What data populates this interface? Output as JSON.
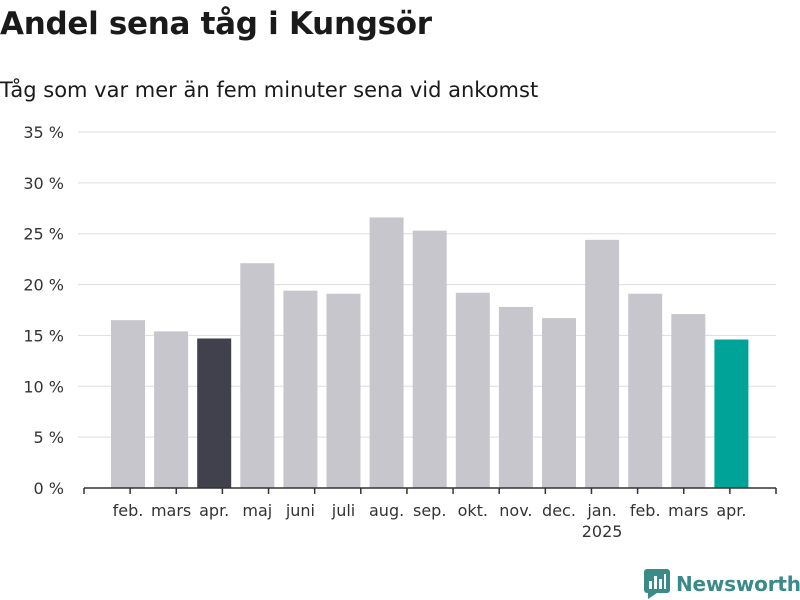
{
  "title": "Andel sena tåg i Kungsör",
  "subtitle": "Tåg som var mer än fem minuter sena vid ankomst",
  "brand": "Newsworthy",
  "colors": {
    "bar_default": "#c7c6cc",
    "bar_highlight_prev": "#41404d",
    "bar_highlight_current": "#00a398",
    "grid": "#dddddd",
    "axis": "#333333",
    "brand": "#3a8a87"
  },
  "chart_data": {
    "type": "bar",
    "categories": [
      "feb.",
      "mars",
      "apr.",
      "maj",
      "juni",
      "juli",
      "aug.",
      "sep.",
      "okt.",
      "nov.",
      "dec.",
      "jan.",
      "feb.",
      "mars",
      "apr."
    ],
    "year_labels": {
      "jan.": "2025"
    },
    "values": [
      16.5,
      15.4,
      14.7,
      22.1,
      19.4,
      19.1,
      26.6,
      25.3,
      19.2,
      17.8,
      16.7,
      24.4,
      19.1,
      17.1,
      14.6
    ],
    "highlight": {
      "2": "bar_highlight_prev",
      "14": "bar_highlight_current"
    },
    "yticks": [
      "0 %",
      "5 %",
      "10 %",
      "15 %",
      "20 %",
      "25 %",
      "30 %",
      "35 %"
    ],
    "ylim": [
      0,
      35
    ],
    "xlabel": "",
    "ylabel": "",
    "grid": true
  }
}
